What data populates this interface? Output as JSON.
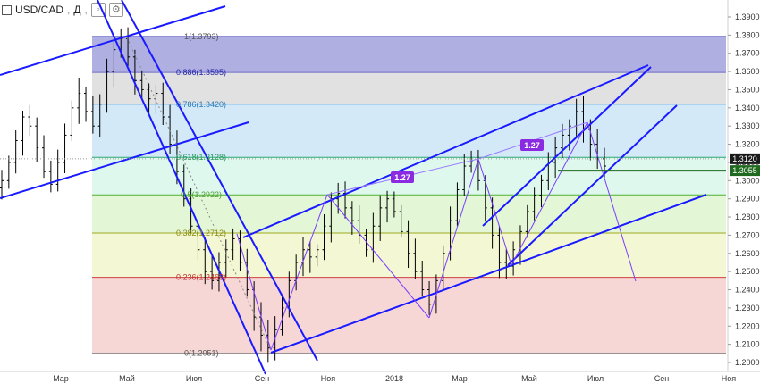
{
  "header": {
    "symbol": "USD/CAD",
    "interval": "Д"
  },
  "colors": {
    "trend_line": "#1a1aff",
    "candle": "#000000",
    "fib_1": "#6e6ec8",
    "fib_0886": "#c8c8c8",
    "fib_0786": "#a8d4f0",
    "fib_0618": "#b8f0d8",
    "fib_05": "#c8f0b0",
    "fib_0382": "#e8f0a8",
    "fib_0236": "#f0b4b4",
    "pattern": "#7a3cff",
    "ratio_badge": "#8a2be2"
  },
  "chart_data": {
    "type": "candlestick",
    "y_axis": {
      "min": 1.2,
      "max": 1.39,
      "ticks": [
        "1.3900",
        "1.3800",
        "1.3700",
        "1.3600",
        "1.3500",
        "1.3400",
        "1.3300",
        "1.3200",
        "1.3100",
        "1.3000",
        "1.2900",
        "1.2800",
        "1.2700",
        "1.2600",
        "1.2500",
        "1.2400",
        "1.2300",
        "1.2200",
        "1.2100",
        "1.2000"
      ]
    },
    "x_axis": {
      "ticks": [
        "Мар",
        "Май",
        "Июл",
        "Сен",
        "Ноя",
        "2018",
        "Мар",
        "Май",
        "Июл",
        "Сен",
        "Ноя"
      ]
    },
    "price_tags": [
      {
        "value": "1.3120",
        "style": "dark"
      },
      {
        "value": "1.3055",
        "style": "green"
      }
    ],
    "fib_levels": [
      {
        "level": "1",
        "value": "(1.3793)",
        "color": "#6e6ec8",
        "label_color": "#555555"
      },
      {
        "level": "0.886",
        "value": "(1.3595)",
        "color": "#6e6ec8",
        "label_color": "#2222aa"
      },
      {
        "level": "0.786",
        "value": "(1.3420)",
        "color": "#3a90d0",
        "label_color": "#2a7ab8"
      },
      {
        "level": "0.618",
        "value": "(1.3128)",
        "color": "#2aa870",
        "label_color": "#2a9a60"
      },
      {
        "level": "0.5",
        "value": "(1.2922)",
        "color": "#50b030",
        "label_color": "#4aa030"
      },
      {
        "level": "0.382",
        "value": "(1.2712)",
        "color": "#a0a820",
        "label_color": "#8a8a10"
      },
      {
        "level": "0.236",
        "value": "(1.2468)",
        "color": "#d04040",
        "label_color": "#c03030"
      },
      {
        "level": "0",
        "value": "(1.2051)",
        "color": "#888888",
        "label_color": "#555555"
      }
    ],
    "ratio_badges": [
      "1.27",
      "1.27"
    ],
    "series": [
      {
        "values": [
          1.3,
          1.31,
          1.322,
          1.335,
          1.33,
          1.318,
          1.305,
          1.298,
          1.31,
          1.325,
          1.34,
          1.348,
          1.338,
          1.33,
          1.342,
          1.36,
          1.372,
          1.378,
          1.368,
          1.355,
          1.35,
          1.345,
          1.348,
          1.335,
          1.32,
          1.305,
          1.29,
          1.275,
          1.262,
          1.25,
          1.245,
          1.255,
          1.262,
          1.268,
          1.255,
          1.24,
          1.225,
          1.215,
          1.208,
          1.218,
          1.23,
          1.245,
          1.255,
          1.262,
          1.258,
          1.262,
          1.275,
          1.29,
          1.293,
          1.285,
          1.278,
          1.27,
          1.262,
          1.275,
          1.285,
          1.29,
          1.283,
          1.272,
          1.26,
          1.25,
          1.24,
          1.232,
          1.245,
          1.26,
          1.278,
          1.295,
          1.308,
          1.311,
          1.3,
          1.285,
          1.27,
          1.255,
          1.253,
          1.262,
          1.272,
          1.283,
          1.292,
          1.3,
          1.31,
          1.318,
          1.325,
          1.33,
          1.338,
          1.328,
          1.32,
          1.312,
          1.308
        ]
      }
    ]
  }
}
